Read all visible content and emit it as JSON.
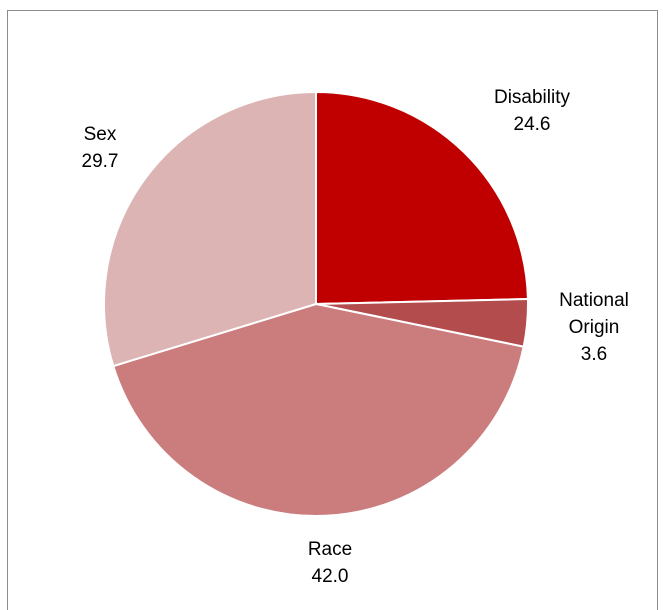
{
  "chart_data": {
    "type": "pie",
    "title": "",
    "legend": "none",
    "slices": [
      {
        "label": "Disability",
        "label_lines": [
          "Disability"
        ],
        "value": 24.6,
        "value_text": "24.6",
        "color": "#c00000"
      },
      {
        "label": "National Origin",
        "label_lines": [
          "National",
          "Origin"
        ],
        "value": 3.6,
        "value_text": "3.6",
        "color": "#b34c4c"
      },
      {
        "label": "Race",
        "label_lines": [
          "Race"
        ],
        "value": 42.0,
        "value_text": "42.0",
        "color": "#cb7d7d"
      },
      {
        "label": "Sex",
        "label_lines": [
          "Sex"
        ],
        "value": 29.7,
        "value_text": "29.7",
        "color": "#ddb4b4"
      }
    ]
  }
}
